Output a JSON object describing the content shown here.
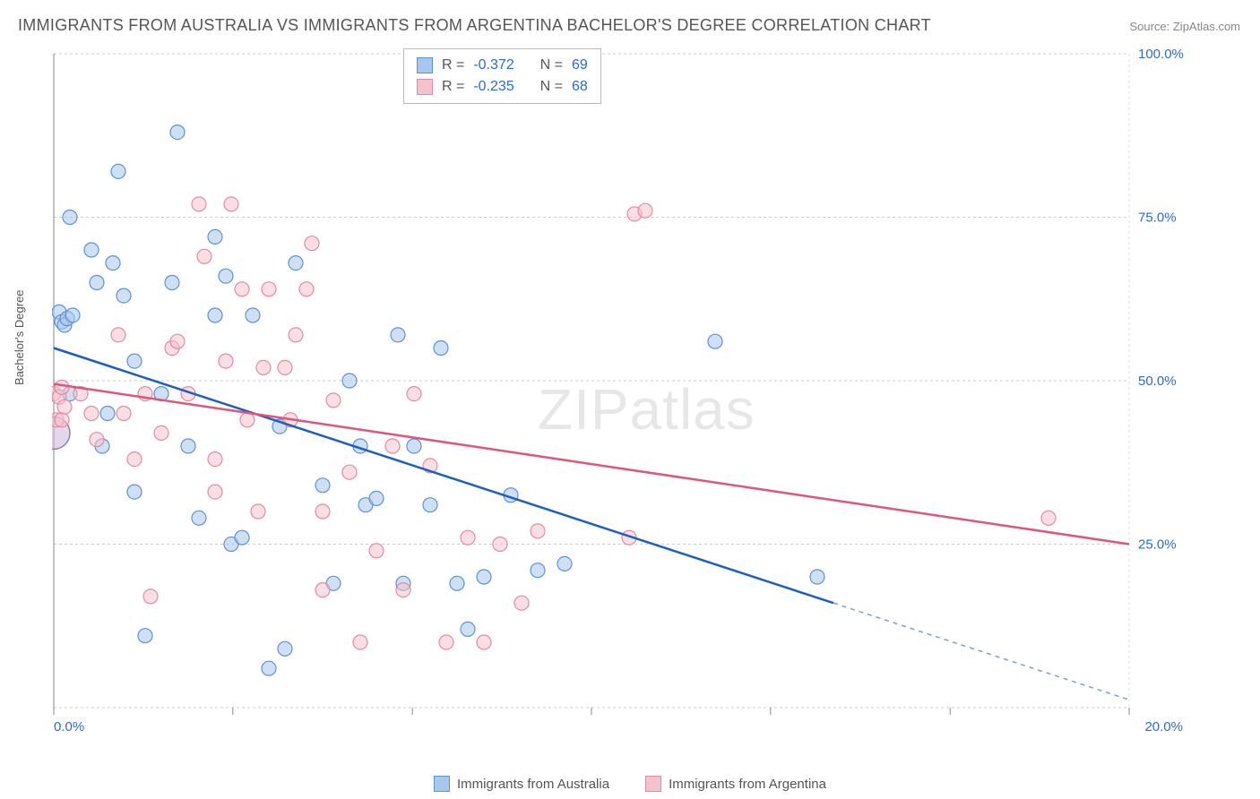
{
  "title": "IMMIGRANTS FROM AUSTRALIA VS IMMIGRANTS FROM ARGENTINA BACHELOR'S DEGREE CORRELATION CHART",
  "source": "Source: ZipAtlas.com",
  "y_axis_label": "Bachelor's Degree",
  "watermark": {
    "bold": "ZIP",
    "light": "atlas"
  },
  "chart": {
    "type": "scatter-regression",
    "background_color": "#ffffff",
    "grid_color": "#cccccc",
    "grid_dash": "3,3",
    "axis_label_color": "#2a6bd4",
    "xlim": [
      0,
      20
    ],
    "ylim": [
      0,
      100
    ],
    "x_ticks": [
      0,
      3.33,
      6.67,
      10,
      13.33,
      16.67,
      20
    ],
    "x_tick_labels": {
      "0": "0.0%",
      "20": "20.0%"
    },
    "y_gridlines": [
      0,
      25,
      50,
      75,
      100
    ],
    "y_tick_labels": {
      "25": "25.0%",
      "50": "50.0%",
      "75": "75.0%",
      "100": "100.0%"
    },
    "marker_radius": 8,
    "marker_opacity": 0.55,
    "series": [
      {
        "name": "Immigrants from Australia",
        "fill_color": "#a8c7ec",
        "stroke_color": "#5a93d6",
        "line_color": "#1b5fc1",
        "R": "-0.372",
        "N": "69",
        "regression": {
          "x1": 0,
          "y1": 55,
          "x2": 14.5,
          "y2": 16,
          "extrapolate_to_x": 20,
          "extrapolate_y": 1.2
        },
        "points": [
          [
            0.1,
            60.5
          ],
          [
            0.15,
            59
          ],
          [
            0.2,
            58.5
          ],
          [
            0.25,
            59.5
          ],
          [
            0.3,
            75
          ],
          [
            0.3,
            48
          ],
          [
            0.35,
            60
          ],
          [
            0.7,
            70
          ],
          [
            0.8,
            65
          ],
          [
            0.9,
            40
          ],
          [
            1.0,
            45
          ],
          [
            1.1,
            68
          ],
          [
            1.2,
            82
          ],
          [
            1.3,
            63
          ],
          [
            1.5,
            33
          ],
          [
            1.5,
            53
          ],
          [
            1.7,
            11
          ],
          [
            2.0,
            48
          ],
          [
            2.2,
            65
          ],
          [
            2.3,
            88
          ],
          [
            2.5,
            40
          ],
          [
            2.7,
            29
          ],
          [
            3.0,
            60
          ],
          [
            3.0,
            72
          ],
          [
            3.2,
            66
          ],
          [
            3.3,
            25
          ],
          [
            3.5,
            26
          ],
          [
            3.7,
            60
          ],
          [
            4.0,
            6
          ],
          [
            4.2,
            43
          ],
          [
            4.3,
            9
          ],
          [
            4.5,
            68
          ],
          [
            5.0,
            34
          ],
          [
            5.2,
            19
          ],
          [
            5.5,
            50
          ],
          [
            5.7,
            40
          ],
          [
            5.8,
            31
          ],
          [
            6.0,
            32
          ],
          [
            6.4,
            57
          ],
          [
            6.5,
            19
          ],
          [
            6.7,
            40
          ],
          [
            7.0,
            31
          ],
          [
            7.2,
            55
          ],
          [
            7.5,
            19
          ],
          [
            7.7,
            12
          ],
          [
            8.0,
            20
          ],
          [
            8.5,
            32.5
          ],
          [
            9.0,
            21
          ],
          [
            9.5,
            22
          ],
          [
            12.3,
            56
          ],
          [
            14.2,
            20
          ]
        ]
      },
      {
        "name": "Immigrants from Argentina",
        "fill_color": "#f4c2cd",
        "stroke_color": "#e38ba0",
        "line_color": "#e05578",
        "R": "-0.235",
        "N": "68",
        "regression": {
          "x1": 0,
          "y1": 49.5,
          "x2": 20,
          "y2": 25
        },
        "points": [
          [
            0.0,
            48
          ],
          [
            0.05,
            44
          ],
          [
            0.1,
            47.5
          ],
          [
            0.15,
            49
          ],
          [
            0.15,
            44
          ],
          [
            0.2,
            46
          ],
          [
            0.5,
            48
          ],
          [
            0.7,
            45
          ],
          [
            0.8,
            41
          ],
          [
            1.2,
            57
          ],
          [
            1.3,
            45
          ],
          [
            1.5,
            38
          ],
          [
            1.7,
            48
          ],
          [
            1.8,
            17
          ],
          [
            2.0,
            42
          ],
          [
            2.2,
            55
          ],
          [
            2.3,
            56
          ],
          [
            2.5,
            48
          ],
          [
            2.7,
            77
          ],
          [
            2.8,
            69
          ],
          [
            3.0,
            38
          ],
          [
            3.0,
            33
          ],
          [
            3.2,
            53
          ],
          [
            3.3,
            77
          ],
          [
            3.5,
            64
          ],
          [
            3.6,
            44
          ],
          [
            3.8,
            30
          ],
          [
            3.9,
            52
          ],
          [
            4.0,
            64
          ],
          [
            4.3,
            52
          ],
          [
            4.4,
            44
          ],
          [
            4.5,
            57
          ],
          [
            4.7,
            64
          ],
          [
            4.8,
            71
          ],
          [
            5.0,
            30
          ],
          [
            5.0,
            18
          ],
          [
            5.2,
            47
          ],
          [
            5.5,
            36
          ],
          [
            5.7,
            10
          ],
          [
            6.0,
            24
          ],
          [
            6.3,
            40
          ],
          [
            6.5,
            18
          ],
          [
            6.7,
            48
          ],
          [
            7.0,
            37
          ],
          [
            7.3,
            10
          ],
          [
            7.7,
            26
          ],
          [
            8.0,
            10
          ],
          [
            8.3,
            25
          ],
          [
            8.7,
            16
          ],
          [
            9.0,
            27
          ],
          [
            10.7,
            26
          ],
          [
            10.8,
            75.5
          ],
          [
            11.0,
            76
          ],
          [
            18.5,
            29
          ]
        ]
      }
    ]
  },
  "stat_legend": {
    "labels": {
      "R": "R =",
      "N": "N ="
    }
  },
  "bottom_legend_labels": [
    "Immigrants from Australia",
    "Immigrants from Argentina"
  ]
}
